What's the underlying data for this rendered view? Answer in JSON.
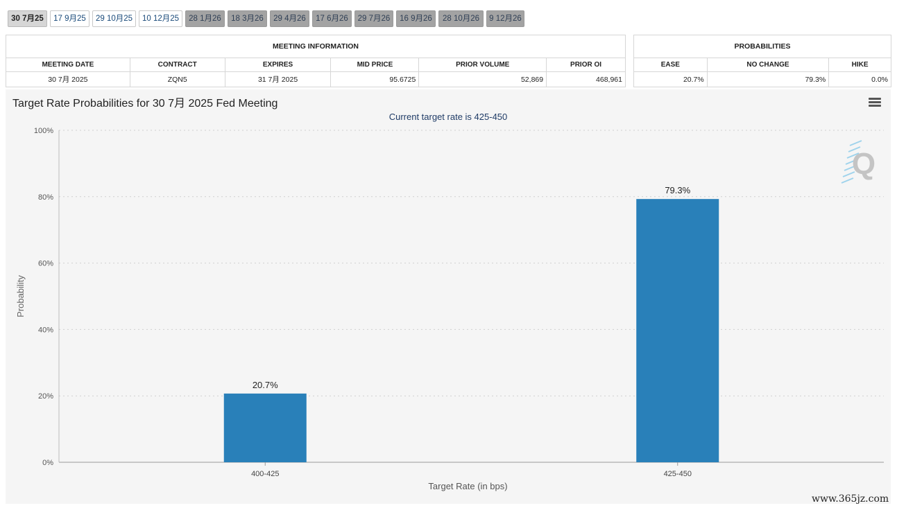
{
  "tabs": [
    {
      "label": "30 7月25",
      "state": "active"
    },
    {
      "label": "17 9月25",
      "state": "light"
    },
    {
      "label": "29 10月25",
      "state": "light"
    },
    {
      "label": "10 12月25",
      "state": "light"
    },
    {
      "label": "28 1月26",
      "state": "dark"
    },
    {
      "label": "18 3月26",
      "state": "dark"
    },
    {
      "label": "29 4月26",
      "state": "dark"
    },
    {
      "label": "17 6月26",
      "state": "dark"
    },
    {
      "label": "29 7月26",
      "state": "dark"
    },
    {
      "label": "16 9月26",
      "state": "dark"
    },
    {
      "label": "28 10月26",
      "state": "dark"
    },
    {
      "label": "9 12月26",
      "state": "dark"
    }
  ],
  "meeting_info": {
    "title": "MEETING INFORMATION",
    "headers": [
      "MEETING DATE",
      "CONTRACT",
      "EXPIRES",
      "MID PRICE",
      "PRIOR VOLUME",
      "PRIOR OI"
    ],
    "values": [
      "30 7月 2025",
      "ZQN5",
      "31 7月 2025",
      "95.6725",
      "52,869",
      "468,961"
    ]
  },
  "probabilities": {
    "title": "PROBABILITIES",
    "headers": [
      "EASE",
      "NO CHANGE",
      "HIKE"
    ],
    "values": [
      "20.7%",
      "79.3%",
      "0.0%"
    ]
  },
  "chart": {
    "title": "Target Rate Probabilities for 30 7月 2025 Fed Meeting",
    "subtitle": "Current target rate is 425-450",
    "logo_letter": "Q"
  },
  "chart_data": {
    "type": "bar",
    "categories": [
      "400-425",
      "425-450"
    ],
    "values": [
      20.7,
      79.3
    ],
    "data_labels": [
      "20.7%",
      "79.3%"
    ],
    "xlabel": "Target Rate (in bps)",
    "ylabel": "Probability",
    "ylim": [
      0,
      100
    ],
    "yticks": [
      0,
      20,
      40,
      60,
      80,
      100
    ],
    "ytick_labels": [
      "0%",
      "20%",
      "40%",
      "60%",
      "80%",
      "100%"
    ],
    "grid": true,
    "bar_color": "#2980b9"
  },
  "watermark": "www.365jz.com"
}
